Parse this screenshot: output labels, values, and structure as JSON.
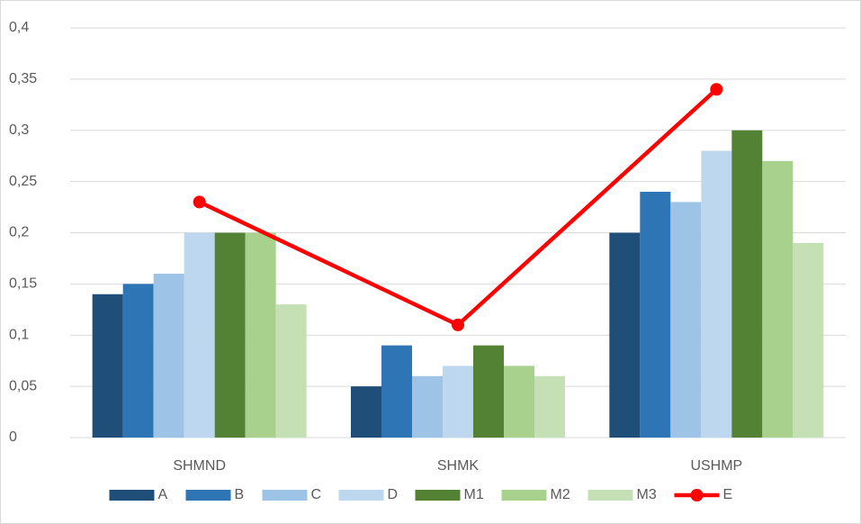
{
  "chart_data": {
    "type": "bar",
    "categories": [
      "SHMND",
      "SHMK",
      "USHMP"
    ],
    "series": [
      {
        "name": "A",
        "color": "#1f4e79",
        "values": [
          0.14,
          0.05,
          0.2
        ]
      },
      {
        "name": "B",
        "color": "#2e75b6",
        "values": [
          0.15,
          0.09,
          0.24
        ]
      },
      {
        "name": "C",
        "color": "#9dc3e6",
        "values": [
          0.16,
          0.06,
          0.23
        ]
      },
      {
        "name": "D",
        "color": "#bdd7ee",
        "values": [
          0.2,
          0.07,
          0.28
        ]
      },
      {
        "name": "M1",
        "color": "#548235",
        "values": [
          0.2,
          0.09,
          0.3
        ]
      },
      {
        "name": "M2",
        "color": "#a9d18e",
        "values": [
          0.2,
          0.07,
          0.27
        ]
      },
      {
        "name": "M3",
        "color": "#c5e0b4",
        "values": [
          0.13,
          0.06,
          0.19
        ]
      },
      {
        "name": "E",
        "color": "#ff0000",
        "type": "line",
        "values": [
          0.23,
          0.11,
          0.34
        ]
      }
    ],
    "ylim": [
      0,
      0.4
    ],
    "yticks": [
      0,
      {
        "value": 0.05,
        "label": "0,05"
      },
      {
        "value": 0.1,
        "label": "0,1"
      },
      {
        "value": 0.15,
        "label": "0,15"
      },
      {
        "value": 0.2,
        "label": "0,2"
      },
      {
        "value": 0.25,
        "label": "0,25"
      },
      {
        "value": 0.3,
        "label": "0,3"
      },
      {
        "value": 0.35,
        "label": "0,35"
      },
      {
        "value": 0.4,
        "label": "0,4"
      }
    ],
    "grid": true,
    "legend": "bottom"
  }
}
